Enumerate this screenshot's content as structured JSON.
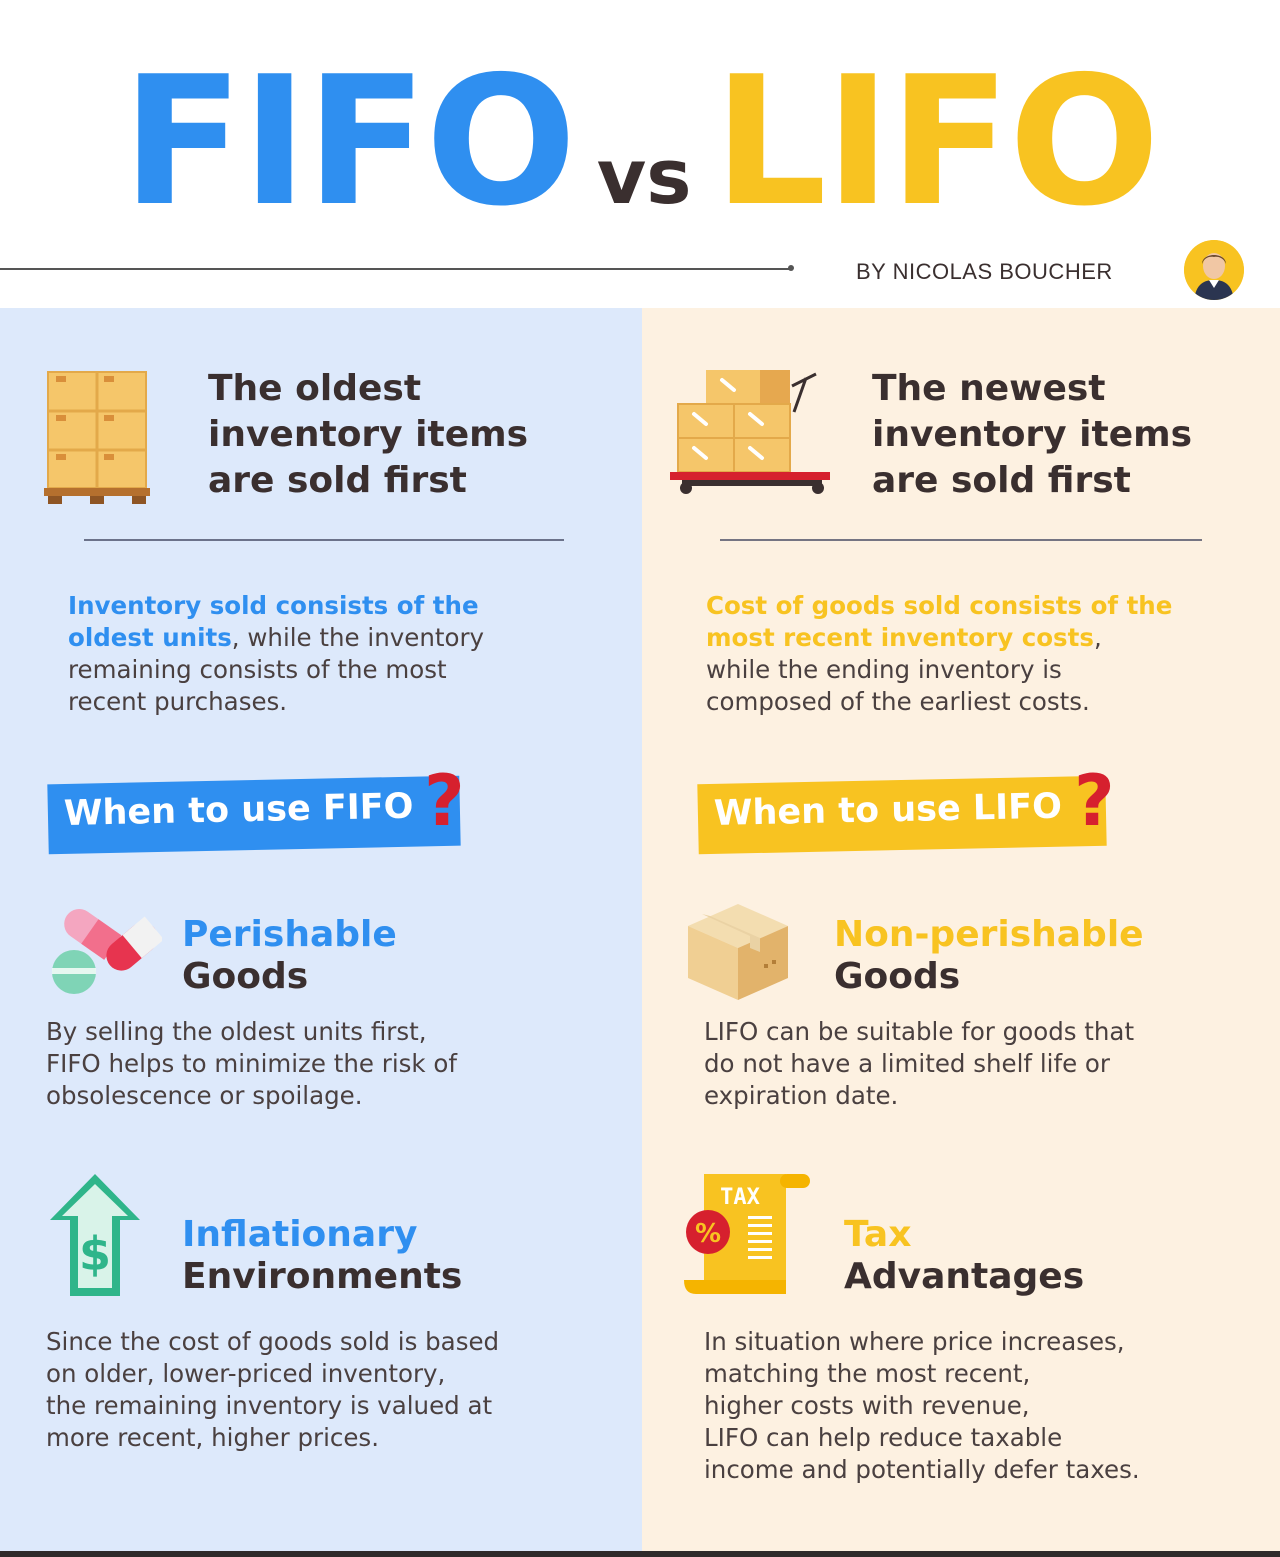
{
  "title": {
    "left": "FIFO",
    "vs": "vs",
    "right": "LIFO"
  },
  "byline": "BY NICOLAS BOUCHER",
  "colors": {
    "fifo": "#2f8ff0",
    "lifo": "#f8c321",
    "dark": "#3a2f2f",
    "left_bg": "#dde9fb",
    "right_bg": "#fdf1e1",
    "accent_red": "#d6202e"
  },
  "fifo": {
    "headline": [
      "The oldest",
      "inventory items",
      "are sold first"
    ],
    "desc_highlight": [
      "Inventory sold consists of the",
      "oldest units"
    ],
    "desc_rest": [
      ", while the inventory",
      "remaining consists of the most",
      "recent purchases."
    ],
    "badge": "When to use FIFO",
    "items": [
      {
        "icon": "pills-icon",
        "title_colored": "Perishable",
        "title_dark": "Goods",
        "text": [
          "By selling the oldest units first,",
          "FIFO helps to minimize the risk of",
          "obsolescence or spoilage."
        ]
      },
      {
        "icon": "dollar-arrow-up-icon",
        "title_colored": "Inflationary",
        "title_dark": "Environments",
        "text": [
          "Since the cost of goods sold is based",
          "on older, lower-priced inventory,",
          "the remaining inventory is valued at",
          "more recent, higher prices."
        ]
      }
    ]
  },
  "lifo": {
    "headline": [
      "The newest",
      "inventory items",
      "are sold first"
    ],
    "desc_highlight": [
      "Cost of goods sold consists of the",
      "most recent inventory costs"
    ],
    "desc_rest": [
      ",",
      "while the ending inventory is",
      "composed of the earliest costs."
    ],
    "badge": "When to use LIFO",
    "items": [
      {
        "icon": "cardboard-box-icon",
        "title_colored": "Non-perishable",
        "title_dark": "Goods",
        "text": [
          "LIFO can be suitable for goods that",
          "do not have a limited shelf life or",
          "expiration date."
        ]
      },
      {
        "icon": "tax-receipt-icon",
        "title_colored": "Tax",
        "title_dark": "Advantages",
        "text": [
          "In situation where price increases,",
          "matching the most recent,",
          "higher costs with revenue,",
          "LIFO can help reduce taxable",
          "income and potentially defer taxes."
        ]
      }
    ],
    "tax_icon_label": "TAX",
    "percent_label": "%"
  },
  "qmark": "?"
}
